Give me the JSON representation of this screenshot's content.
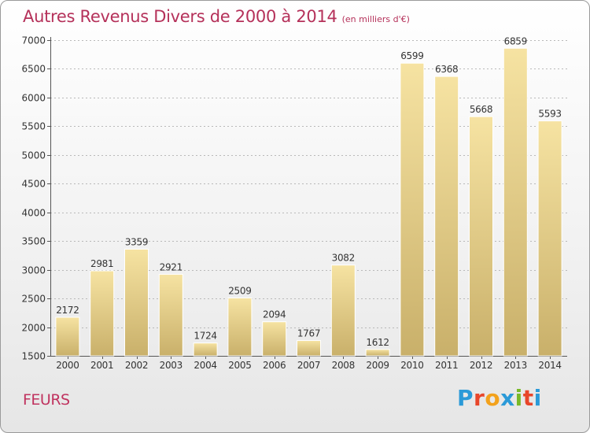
{
  "title": "Autres Revenus Divers de 2000 à 2014",
  "subtitle": "(en milliers d'€)",
  "location": "FEURS",
  "brand": {
    "letters": [
      "P",
      "r",
      "o",
      "x",
      "i",
      "t",
      "i"
    ],
    "colors": [
      "#2b9ad8",
      "#e8462a",
      "#f3a21c",
      "#2b9ad8",
      "#79b928",
      "#e8462a",
      "#2b9ad8"
    ]
  },
  "colors": {
    "bar_top": "#f6e3a2",
    "bar_bottom": "#c9b06a",
    "title": "#b5315a",
    "axis_text": "#333333",
    "grid": "#b9b9b9"
  },
  "chart_data": {
    "type": "bar",
    "categories": [
      "2000",
      "2001",
      "2002",
      "2003",
      "2004",
      "2005",
      "2006",
      "2007",
      "2008",
      "2009",
      "2010",
      "2011",
      "2012",
      "2013",
      "2014"
    ],
    "values": [
      2172,
      2981,
      3359,
      2921,
      1724,
      2509,
      2094,
      1767,
      3082,
      1612,
      6599,
      6368,
      5668,
      6859,
      5593
    ],
    "ylim": [
      1500,
      7000
    ],
    "yticks": [
      1500,
      2000,
      2500,
      3000,
      3500,
      4000,
      4500,
      5000,
      5500,
      6000,
      6500,
      7000
    ],
    "grid": true
  }
}
